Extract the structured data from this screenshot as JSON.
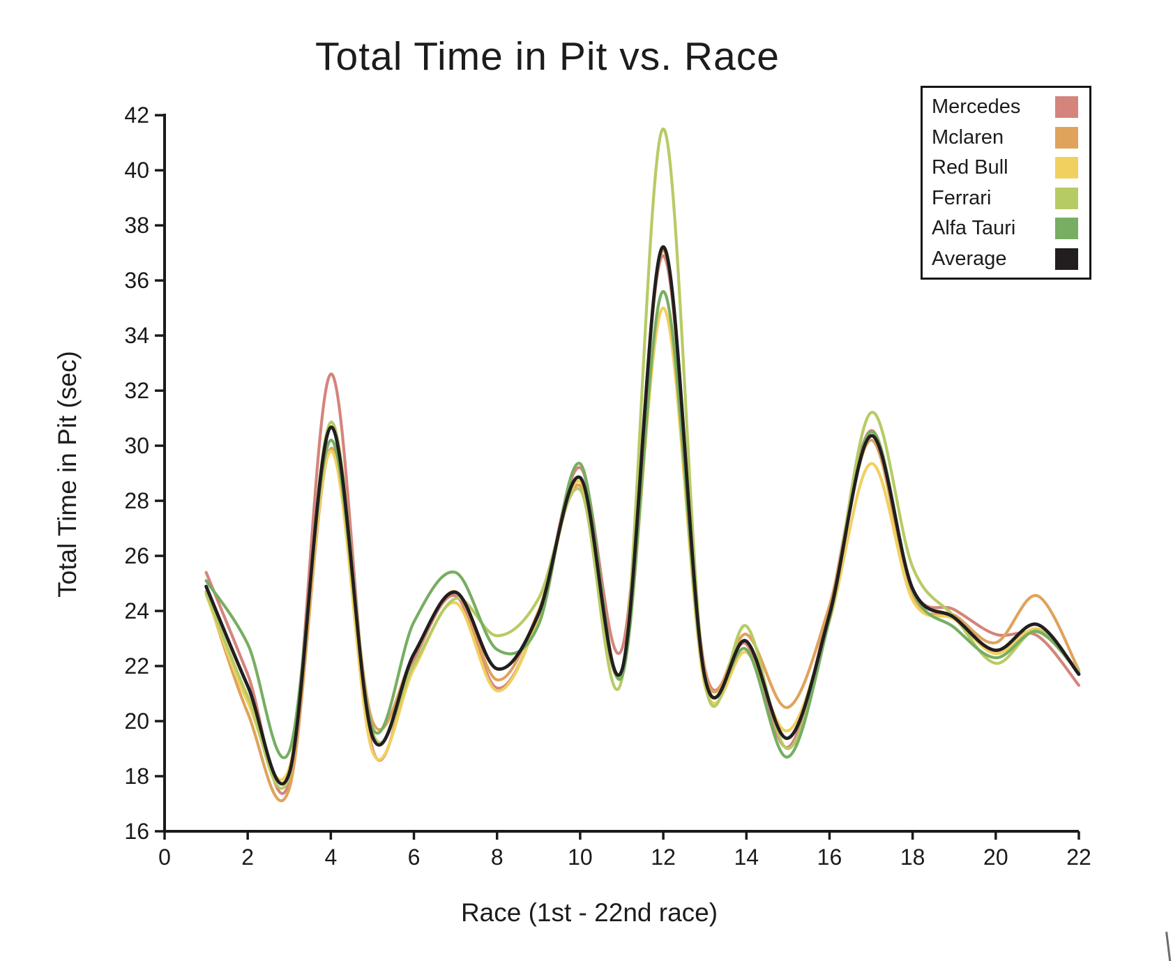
{
  "chart_data": {
    "type": "line",
    "title": "Total Time in Pit vs. Race",
    "xlabel": "Race (1st - 22nd race)",
    "ylabel": "Total Time in Pit (sec)",
    "xlim": [
      0,
      22
    ],
    "ylim": [
      16,
      42
    ],
    "xticks": [
      0,
      2,
      4,
      6,
      8,
      10,
      12,
      14,
      16,
      18,
      20,
      22
    ],
    "yticks": [
      16,
      18,
      20,
      22,
      24,
      26,
      28,
      30,
      32,
      34,
      36,
      38,
      40,
      42
    ],
    "grid": false,
    "legend_position": "top-right",
    "curve_style": "smooth-spline",
    "x": [
      1,
      2,
      3,
      4,
      5,
      6,
      7,
      8,
      9,
      10,
      11,
      12,
      13,
      14,
      15,
      16,
      17,
      18,
      19,
      20,
      21,
      22
    ],
    "series": [
      {
        "name": "Mercedes",
        "color": "#d5847c",
        "values": [
          25.4,
          21.7,
          17.8,
          32.6,
          19.0,
          22.25,
          24.55,
          21.2,
          23.8,
          29.2,
          22.6,
          36.9,
          21.9,
          22.8,
          19.05,
          24.1,
          30.55,
          24.8,
          24.05,
          23.15,
          23.1,
          21.3
        ]
      },
      {
        "name": "Mclaren",
        "color": "#dfa35c",
        "values": [
          24.7,
          20.3,
          17.55,
          29.9,
          20.0,
          22.4,
          24.7,
          21.5,
          24.0,
          28.55,
          21.75,
          37.1,
          21.8,
          23.15,
          20.5,
          24.2,
          30.2,
          24.5,
          23.85,
          22.85,
          24.55,
          21.85
        ]
      },
      {
        "name": "Red Bull",
        "color": "#f1d05f",
        "values": [
          24.6,
          20.7,
          18.3,
          29.8,
          18.9,
          21.9,
          24.3,
          21.1,
          23.75,
          28.7,
          21.7,
          35.0,
          21.3,
          22.5,
          19.65,
          23.65,
          29.35,
          24.4,
          23.7,
          22.45,
          23.35,
          21.8
        ]
      },
      {
        "name": "Ferrari",
        "color": "#b7cb64",
        "values": [
          24.65,
          20.9,
          18.0,
          30.85,
          19.6,
          22.05,
          24.45,
          23.1,
          24.45,
          28.4,
          21.5,
          41.5,
          21.45,
          23.45,
          19.0,
          23.75,
          31.2,
          25.6,
          23.8,
          22.1,
          23.3,
          21.8
        ]
      },
      {
        "name": "Alfa Tauri",
        "color": "#77ae62",
        "values": [
          25.1,
          22.8,
          18.9,
          30.2,
          19.75,
          23.6,
          25.4,
          22.6,
          23.5,
          29.35,
          21.6,
          35.6,
          21.55,
          22.6,
          18.7,
          23.7,
          30.5,
          24.75,
          23.4,
          22.3,
          23.25,
          21.75
        ]
      },
      {
        "name": "Average",
        "color": "#221e1f",
        "values": [
          24.89,
          21.28,
          18.11,
          30.67,
          19.45,
          22.44,
          24.68,
          21.9,
          23.9,
          28.84,
          21.83,
          37.22,
          21.6,
          22.9,
          19.38,
          23.88,
          30.36,
          24.81,
          23.76,
          22.57,
          23.51,
          21.7
        ]
      }
    ],
    "axis_color": "#1a1a1a"
  }
}
